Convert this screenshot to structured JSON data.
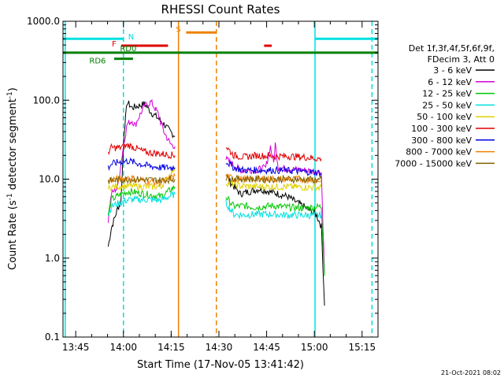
{
  "chart_data": {
    "type": "line",
    "title": "RHESSI Count Rates",
    "xlabel": "Start Time (17-Nov-05 13:41:42)",
    "ylabel_parts": [
      "Count Rate (s",
      "-1",
      " detector segment",
      "-1",
      ")"
    ],
    "yscale": "log",
    "ylim": [
      0.1,
      1000.0
    ],
    "xlim_minutes_after_1341_42": [
      -0.7,
      98.3
    ],
    "y_ticks": [
      "0.1",
      "1.0",
      "10.0",
      "100.0",
      "1000.0"
    ],
    "x_ticks": [
      {
        "label": "13:45",
        "minute": 3.3
      },
      {
        "label": "14:00",
        "minute": 18.3
      },
      {
        "label": "14:15",
        "minute": 33.3
      },
      {
        "label": "14:30",
        "minute": 48.3
      },
      {
        "label": "14:45",
        "minute": 63.3
      },
      {
        "label": "15:00",
        "minute": 78.3
      },
      {
        "label": "15:15",
        "minute": 93.3
      }
    ],
    "legend": {
      "placement": "right",
      "header": [
        "Det 1f,3f,4f,5f,6f,9f,",
        "FDecim 3, Att 0"
      ],
      "entries": [
        {
          "label": "3 - 6 keV",
          "color": "#000000"
        },
        {
          "label": "6 - 12 keV",
          "color": "#d400d4"
        },
        {
          "label": "12 - 25 keV",
          "color": "#00c800"
        },
        {
          "label": "25 - 50 keV",
          "color": "#00e0e0"
        },
        {
          "label": "50 - 100 keV",
          "color": "#e0d000"
        },
        {
          "label": "100 - 300 keV",
          "color": "#e00000"
        },
        {
          "label": "300 - 800 keV",
          "color": "#0000e0"
        },
        {
          "label": "800 - 7000 keV",
          "color": "#f08000"
        },
        {
          "label": "7000 - 15000 keV",
          "color": "#806000"
        }
      ]
    },
    "series": [
      {
        "label": "3 - 6 keV",
        "color": "#000000",
        "points": [
          [
            13.5,
            1.4
          ],
          [
            14.5,
            2.4
          ],
          [
            15.5,
            3.2
          ],
          [
            16.5,
            4.3
          ],
          [
            17.5,
            5
          ],
          [
            18.5,
            40
          ],
          [
            19.5,
            95
          ],
          [
            21,
            80
          ],
          [
            23,
            85
          ],
          [
            25,
            90
          ],
          [
            27,
            70
          ],
          [
            29,
            60
          ],
          [
            31,
            50
          ],
          [
            33,
            40
          ],
          [
            34.5,
            35
          ]
        ],
        "points2": [
          [
            50.5,
            12
          ],
          [
            52,
            9
          ],
          [
            55,
            6.5
          ],
          [
            58,
            7
          ],
          [
            61,
            7.5
          ],
          [
            64,
            7
          ],
          [
            67,
            6.5
          ],
          [
            70,
            6
          ],
          [
            73,
            5
          ],
          [
            75,
            4.5
          ],
          [
            77,
            4
          ],
          [
            79,
            3.5
          ],
          [
            80.5,
            2.5
          ],
          [
            81.5,
            0.25
          ]
        ]
      },
      {
        "label": "6 - 12 keV",
        "color": "#d400d4",
        "points": [
          [
            13.5,
            3
          ],
          [
            14.5,
            6.5
          ],
          [
            16.5,
            8
          ],
          [
            18.5,
            30
          ],
          [
            19.5,
            50
          ],
          [
            21,
            55
          ],
          [
            22,
            48
          ],
          [
            23,
            60
          ],
          [
            25,
            85
          ],
          [
            27,
            95
          ],
          [
            29,
            70
          ],
          [
            31,
            40
          ],
          [
            33,
            28
          ],
          [
            34.5,
            26
          ]
        ],
        "points2": [
          [
            50.5,
            18
          ],
          [
            55,
            13
          ],
          [
            60,
            13
          ],
          [
            63,
            14
          ],
          [
            64.5,
            26
          ],
          [
            65.5,
            16
          ],
          [
            66,
            28
          ],
          [
            67,
            14
          ],
          [
            70,
            13.5
          ],
          [
            75,
            13
          ],
          [
            79,
            12.5
          ],
          [
            80.5,
            12
          ],
          [
            81.5,
            0.6
          ]
        ]
      },
      {
        "label": "12 - 25 keV",
        "color": "#00c800",
        "points": [
          [
            13.5,
            3.5
          ],
          [
            14.5,
            5.5
          ],
          [
            17,
            6.3
          ],
          [
            20,
            7
          ],
          [
            25,
            6.5
          ],
          [
            30,
            6
          ],
          [
            34.5,
            8
          ]
        ],
        "points2": [
          [
            50.5,
            6
          ],
          [
            53,
            4.5
          ],
          [
            56,
            4.6
          ],
          [
            60,
            4.4
          ],
          [
            65,
            4.6
          ],
          [
            70,
            4.4
          ],
          [
            75,
            4.3
          ],
          [
            80.5,
            4.5
          ],
          [
            81.5,
            0.6
          ]
        ]
      },
      {
        "label": "25 - 50 keV",
        "color": "#00e0e0",
        "points": [
          [
            13.5,
            3.5
          ],
          [
            14.5,
            4.5
          ],
          [
            17,
            5
          ],
          [
            20,
            5.5
          ],
          [
            25,
            5.5
          ],
          [
            30,
            5.4
          ],
          [
            34.5,
            6.5
          ]
        ],
        "points2": [
          [
            50.5,
            5
          ],
          [
            53,
            3.6
          ],
          [
            56,
            3.5
          ],
          [
            60,
            3.6
          ],
          [
            65,
            3.6
          ],
          [
            70,
            3.5
          ],
          [
            75,
            3.5
          ],
          [
            80.5,
            3.5
          ]
        ]
      },
      {
        "label": "50 - 100 keV",
        "color": "#e0d000",
        "points": [
          [
            13.5,
            7.5
          ],
          [
            14.5,
            8
          ],
          [
            20,
            8.2
          ],
          [
            25,
            8
          ],
          [
            30,
            8
          ],
          [
            34.5,
            14
          ]
        ],
        "points2": [
          [
            50.5,
            9
          ],
          [
            55,
            8.2
          ],
          [
            60,
            8
          ],
          [
            70,
            8
          ],
          [
            80.5,
            7.8
          ]
        ]
      },
      {
        "label": "100 - 300 keV",
        "color": "#e00000",
        "points": [
          [
            13.5,
            22
          ],
          [
            14.5,
            25
          ],
          [
            17,
            25
          ],
          [
            20,
            27
          ],
          [
            25,
            22
          ],
          [
            30,
            21
          ],
          [
            34.5,
            20
          ]
        ],
        "points2": [
          [
            50.5,
            26
          ],
          [
            53,
            20
          ],
          [
            56,
            19
          ],
          [
            60,
            20
          ],
          [
            65,
            19.5
          ],
          [
            70,
            19.5
          ],
          [
            75,
            19
          ],
          [
            80.5,
            18
          ]
        ]
      },
      {
        "label": "300 - 800 keV",
        "color": "#0000e0",
        "points": [
          [
            13.5,
            14
          ],
          [
            14.5,
            15.5
          ],
          [
            17,
            16.5
          ],
          [
            20,
            17
          ],
          [
            25,
            15
          ],
          [
            30,
            14
          ],
          [
            34.5,
            14
          ]
        ],
        "points2": [
          [
            50.5,
            17
          ],
          [
            53,
            14
          ],
          [
            56,
            13
          ],
          [
            60,
            13
          ],
          [
            65,
            13
          ],
          [
            70,
            12.8
          ],
          [
            75,
            12.5
          ],
          [
            80.5,
            12
          ]
        ]
      },
      {
        "label": "800 - 7000 keV",
        "color": "#f08000",
        "points": [
          [
            13.5,
            9
          ],
          [
            14.5,
            10
          ],
          [
            17,
            10
          ],
          [
            20,
            10.5
          ],
          [
            25,
            9.5
          ],
          [
            30,
            9
          ],
          [
            34.5,
            11
          ]
        ],
        "points2": [
          [
            50.5,
            11
          ],
          [
            53,
            10
          ],
          [
            56,
            10
          ],
          [
            60,
            10
          ],
          [
            65,
            10
          ],
          [
            70,
            10
          ],
          [
            75,
            10
          ],
          [
            80.5,
            9.5
          ]
        ]
      },
      {
        "label": "7000 - 15000 keV",
        "color": "#806000",
        "points": [
          [
            13.5,
            9.5
          ],
          [
            20,
            10
          ],
          [
            30,
            9.7
          ],
          [
            34.5,
            10
          ]
        ],
        "points2": [
          [
            50.5,
            10.2
          ],
          [
            60,
            10
          ],
          [
            70,
            10
          ],
          [
            80.5,
            9.8
          ]
        ]
      }
    ],
    "flags": [
      {
        "label": "N",
        "color": "#00e0e0",
        "ranges": [
          [
            -0.7,
            18.3
          ],
          [
            78.6,
            98.3
          ]
        ],
        "level_y": 600
      },
      {
        "label": "F",
        "color": "#e00000",
        "ranges": [
          [
            17.6,
            32.3
          ],
          [
            62.5,
            64.9
          ]
        ],
        "level_y": 490
      },
      {
        "label": "S",
        "color": "#f08000",
        "ranges": [
          [
            38,
            47.5
          ]
        ],
        "level_y": 720
      },
      {
        "label": "RD0",
        "color": "#008000",
        "ranges": [
          [
            -0.7,
            98.3
          ]
        ],
        "level_y": 400
      },
      {
        "label": "RD6",
        "color": "#008000",
        "ranges": [
          [
            15.4,
            21.3
          ]
        ],
        "level_y": 335
      }
    ],
    "vertical_lines": [
      {
        "minute": 0.0,
        "color": "#00e0e0",
        "style": "solid"
      },
      {
        "minute": 18.3,
        "color": "#00e0e0",
        "style": "dashed"
      },
      {
        "minute": 35.6,
        "color": "#f08000",
        "style": "solid"
      },
      {
        "minute": 47.5,
        "color": "#f08000",
        "style": "dashed"
      },
      {
        "minute": 78.5,
        "color": "#00e0e0",
        "style": "solid"
      },
      {
        "minute": 96.4,
        "color": "#00e0e0",
        "style": "dashed"
      }
    ],
    "footer_date": "21-Oct-2021 08:02"
  }
}
